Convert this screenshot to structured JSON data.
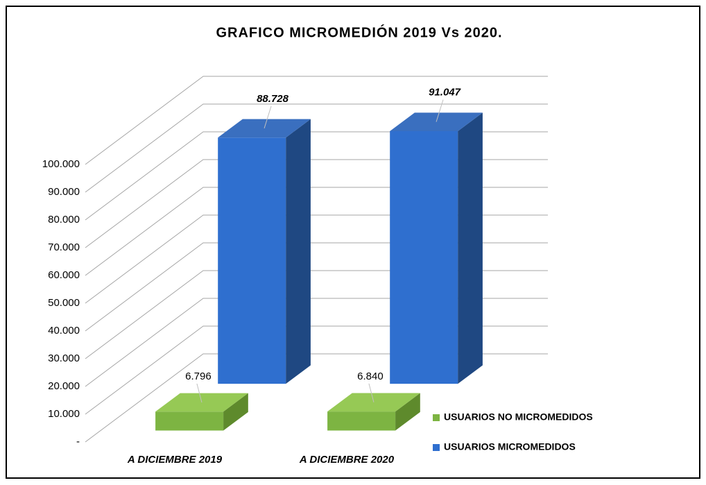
{
  "chart_data": {
    "type": "bar3d",
    "title": "GRAFICO MICROMEDIÓN 2019 Vs 2020.",
    "categories": [
      "A DICIEMBRE 2019",
      "A DICIEMBRE 2020"
    ],
    "series": [
      {
        "name": "USUARIOS NO MICROMEDIDOS",
        "color": "#7db442",
        "values": [
          6796,
          6840
        ],
        "value_labels": [
          "6.796",
          "6.840"
        ]
      },
      {
        "name": "USUARIOS MICROMEDIDOS",
        "color": "#2f6fcf",
        "values": [
          88728,
          91047
        ],
        "value_labels": [
          "88.728",
          "91.047"
        ]
      }
    ],
    "ylim": [
      0,
      100000
    ],
    "yticks": [
      {
        "value": 0,
        "label": "-"
      },
      {
        "value": 10000,
        "label": "10.000"
      },
      {
        "value": 20000,
        "label": "20.000"
      },
      {
        "value": 30000,
        "label": "30.000"
      },
      {
        "value": 40000,
        "label": "40.000"
      },
      {
        "value": 50000,
        "label": "50.000"
      },
      {
        "value": 60000,
        "label": "60.000"
      },
      {
        "value": 70000,
        "label": "70.000"
      },
      {
        "value": 80000,
        "label": "80.000"
      },
      {
        "value": 90000,
        "label": "90.000"
      },
      {
        "value": 100000,
        "label": "100.000"
      }
    ],
    "grid": true
  }
}
